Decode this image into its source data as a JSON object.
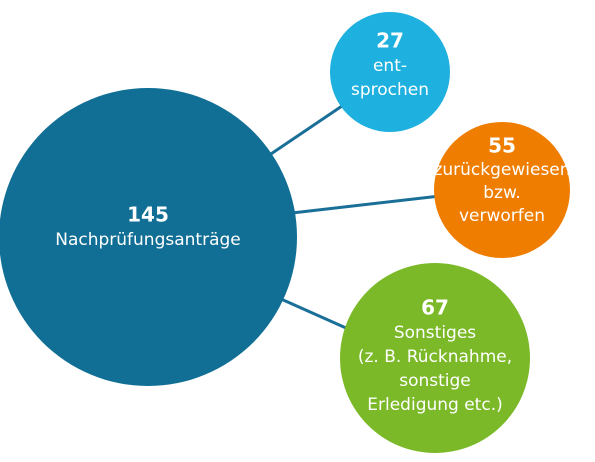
{
  "nodes": [
    {
      "value": "145",
      "label": [
        "Nachprüfungsanträge"
      ]
    },
    {
      "value": "27",
      "label": [
        "ent-",
        "sprochen"
      ]
    },
    {
      "value": "55",
      "label": [
        "zurückgewiesen",
        "bzw.",
        "verworfen"
      ]
    },
    {
      "value": "67",
      "label": [
        "Sonstiges",
        "(z. B. Rücknahme,",
        "sonstige",
        "Erledigung etc.)"
      ]
    }
  ]
}
